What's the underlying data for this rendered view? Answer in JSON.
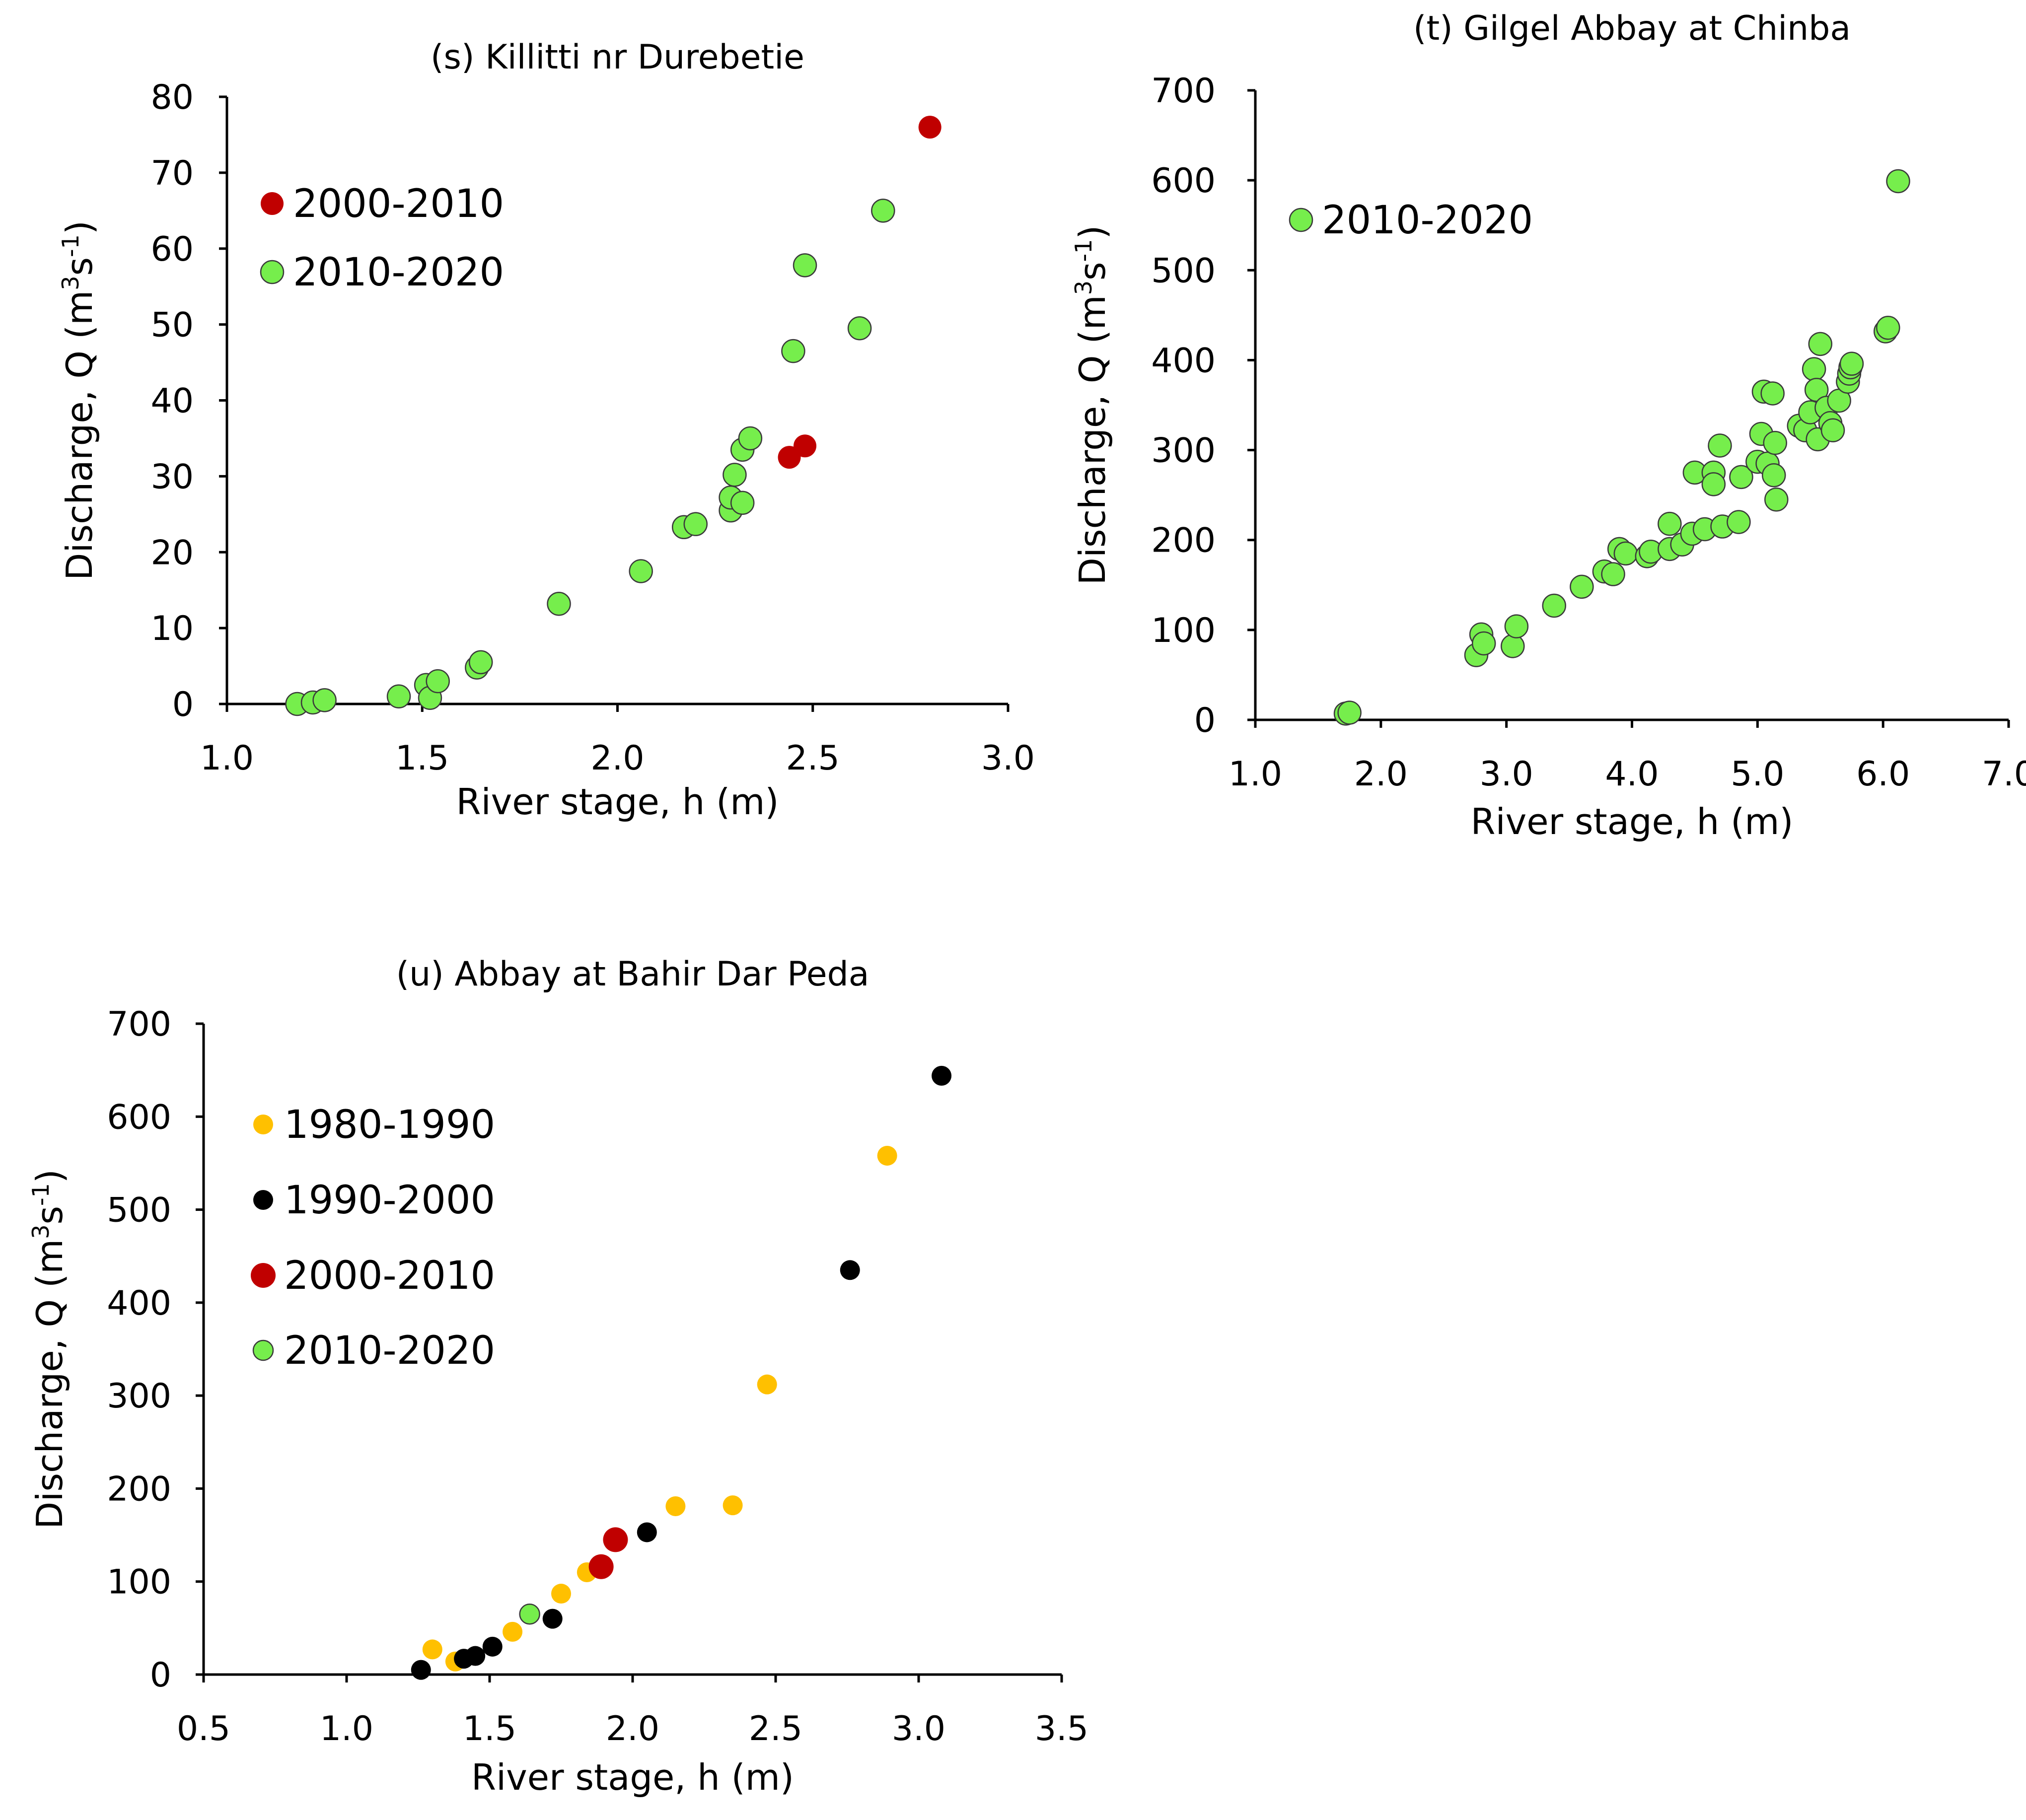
{
  "colors": {
    "c1980": "#FFC000",
    "c1990": "#000000",
    "c2000": "#C00000",
    "c2010": "#76EE4C",
    "marker_edge": "#3a3a3a"
  },
  "chart_data": [
    {
      "id": "s",
      "type": "scatter",
      "title": "(s) Killitti nr Durebetie",
      "xlabel": "River stage, h (m)",
      "ylabel": {
        "main": "Discharge, Q (m",
        "sup1": "3",
        "mid": "s",
        "sup2": "-1",
        "end": ")"
      },
      "xlim": [
        1.0,
        3.0
      ],
      "ylim": [
        0,
        80
      ],
      "xticks": [
        "1.0",
        "1.5",
        "2.0",
        "2.5",
        "3.0"
      ],
      "yticks": [
        "0",
        "10",
        "20",
        "30",
        "40",
        "50",
        "60",
        "70",
        "80"
      ],
      "legend_position": "top-left",
      "series": [
        {
          "name": "2000-2010",
          "color_key": "c2000",
          "points": [
            [
              2.8,
              76
            ],
            [
              2.44,
              32.5
            ],
            [
              2.48,
              34
            ]
          ]
        },
        {
          "name": "2010-2020",
          "color_key": "c2010",
          "points": [
            [
              1.18,
              0
            ],
            [
              1.22,
              0.2
            ],
            [
              1.25,
              0.5
            ],
            [
              1.44,
              1
            ],
            [
              1.51,
              2.5
            ],
            [
              1.52,
              0.8
            ],
            [
              1.54,
              3
            ],
            [
              1.64,
              4.8
            ],
            [
              1.65,
              5.5
            ],
            [
              1.85,
              13.2
            ],
            [
              2.06,
              17.5
            ],
            [
              2.17,
              23.3
            ],
            [
              2.2,
              23.7
            ],
            [
              2.29,
              25.5
            ],
            [
              2.29,
              27.2
            ],
            [
              2.3,
              30.2
            ],
            [
              2.32,
              26.5
            ],
            [
              2.32,
              33.5
            ],
            [
              2.34,
              35
            ],
            [
              2.45,
              46.5
            ],
            [
              2.48,
              57.8
            ],
            [
              2.62,
              49.5
            ],
            [
              2.68,
              65
            ]
          ]
        }
      ]
    },
    {
      "id": "t",
      "type": "scatter",
      "title": "(t) Gilgel Abbay at Chinba",
      "xlabel": "River stage, h (m)",
      "ylabel": {
        "main": "Discharge, Q (m",
        "sup1": "3",
        "mid": "s",
        "sup2": "-1",
        "end": ")"
      },
      "xlim": [
        1.0,
        7.0
      ],
      "ylim": [
        0,
        700
      ],
      "xticks": [
        "1.0",
        "2.0",
        "3.0",
        "4.0",
        "5.0",
        "6.0",
        "7.0"
      ],
      "yticks": [
        "0",
        "100",
        "200",
        "300",
        "400",
        "500",
        "600",
        "700"
      ],
      "legend_position": "top-left",
      "series": [
        {
          "name": "2010-2020",
          "color_key": "c2010",
          "points": [
            [
              1.72,
              7
            ],
            [
              1.75,
              8
            ],
            [
              2.76,
              72
            ],
            [
              2.8,
              95
            ],
            [
              2.82,
              85
            ],
            [
              3.05,
              82
            ],
            [
              3.08,
              104
            ],
            [
              3.38,
              127
            ],
            [
              3.6,
              148
            ],
            [
              3.78,
              165
            ],
            [
              3.85,
              162
            ],
            [
              3.9,
              190
            ],
            [
              3.95,
              185
            ],
            [
              4.12,
              182
            ],
            [
              4.15,
              187
            ],
            [
              4.3,
              190
            ],
            [
              4.3,
              218
            ],
            [
              4.4,
              195
            ],
            [
              4.48,
              207
            ],
            [
              4.5,
              275
            ],
            [
              4.58,
              212
            ],
            [
              4.65,
              275
            ],
            [
              4.65,
              262
            ],
            [
              4.7,
              305
            ],
            [
              4.72,
              215
            ],
            [
              4.85,
              220
            ],
            [
              4.87,
              270
            ],
            [
              5.0,
              287
            ],
            [
              5.03,
              318
            ],
            [
              5.05,
              365
            ],
            [
              5.08,
              285
            ],
            [
              5.12,
              363
            ],
            [
              5.13,
              272
            ],
            [
              5.14,
              308
            ],
            [
              5.15,
              245
            ],
            [
              5.33,
              327
            ],
            [
              5.38,
              322
            ],
            [
              5.42,
              342
            ],
            [
              5.45,
              390
            ],
            [
              5.47,
              367
            ],
            [
              5.48,
              312
            ],
            [
              5.5,
              418
            ],
            [
              5.55,
              347
            ],
            [
              5.58,
              330
            ],
            [
              5.6,
              322
            ],
            [
              5.65,
              355
            ],
            [
              5.72,
              376
            ],
            [
              5.73,
              385
            ],
            [
              5.74,
              392
            ],
            [
              5.75,
              396
            ],
            [
              6.02,
              432
            ],
            [
              6.04,
              436
            ],
            [
              6.12,
              599
            ]
          ]
        }
      ]
    },
    {
      "id": "u",
      "type": "scatter",
      "title": "(u) Abbay at Bahir Dar Peda",
      "xlabel": "River stage, h (m)",
      "ylabel": {
        "main": "Discharge, Q (m",
        "sup1": "3",
        "mid": "s",
        "sup2": "-1",
        "end": ")"
      },
      "xlim": [
        0.5,
        3.5
      ],
      "ylim": [
        0,
        700
      ],
      "xticks": [
        "0.5",
        "1.0",
        "1.5",
        "2.0",
        "2.5",
        "3.0",
        "3.5"
      ],
      "yticks": [
        "0",
        "100",
        "200",
        "300",
        "400",
        "500",
        "600",
        "700"
      ],
      "legend_position": "top-left",
      "series": [
        {
          "name": "1980-1990",
          "color_key": "c1980",
          "points": [
            [
              1.3,
              27
            ],
            [
              1.38,
              14
            ],
            [
              1.58,
              46
            ],
            [
              1.75,
              87
            ],
            [
              1.84,
              110
            ],
            [
              2.15,
              181
            ],
            [
              2.35,
              182
            ],
            [
              2.47,
              312
            ],
            [
              2.89,
              558
            ]
          ]
        },
        {
          "name": "1990-2000",
          "color_key": "c1990",
          "points": [
            [
              1.26,
              5
            ],
            [
              1.41,
              17
            ],
            [
              1.45,
              20
            ],
            [
              1.51,
              30
            ],
            [
              1.72,
              60
            ],
            [
              2.05,
              153
            ],
            [
              2.76,
              435
            ],
            [
              3.08,
              644
            ]
          ]
        },
        {
          "name": "2000-2010",
          "color_key": "c2000",
          "points": [
            [
              1.89,
              116
            ],
            [
              1.94,
              145
            ]
          ]
        },
        {
          "name": "2010-2020",
          "color_key": "c2010",
          "points": [
            [
              1.64,
              65
            ]
          ]
        }
      ]
    }
  ]
}
